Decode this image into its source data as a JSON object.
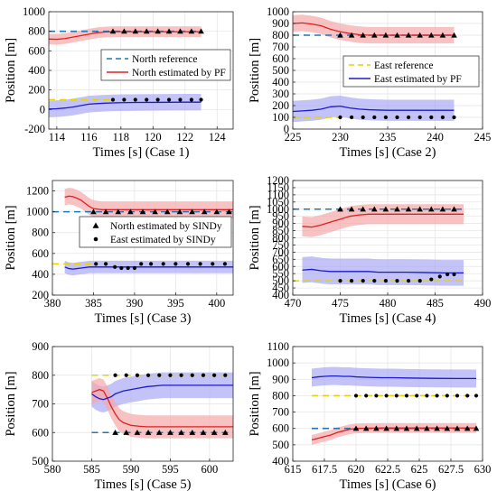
{
  "colors": {
    "north_ref": "#1f77b4",
    "east_ref": "#e5d400",
    "pf_north": "#e02020",
    "pf_east": "#1a1ad0",
    "band_north": "#f7a8a8",
    "band_east": "#a9a9f5",
    "sindy": "#000000"
  },
  "chart_data": [
    {
      "type": "line",
      "xlabel": "Times [s]  (Case 1)",
      "ylabel": "Position [m]",
      "xlim": [
        113.5,
        125
      ],
      "ylim": [
        -200,
        1000
      ],
      "xticks": [
        114,
        116,
        118,
        120,
        122,
        124
      ],
      "yticks": [
        -200,
        0,
        200,
        400,
        600,
        800,
        1000
      ],
      "legend": {
        "position": "right",
        "entries": [
          "North reference",
          "North estimated by PF"
        ]
      },
      "north_ref": {
        "y": 800,
        "x": [
          113.5,
          123
        ]
      },
      "east_ref": {
        "y": 100,
        "x": [
          113.5,
          117.5
        ]
      },
      "pf_north": {
        "x": [
          113.5,
          114,
          114.5,
          115,
          115.5,
          116,
          116.5,
          117,
          117.5,
          118,
          119,
          120,
          121,
          122,
          123
        ],
        "y": [
          720,
          718,
          725,
          740,
          755,
          770,
          785,
          792,
          795,
          796,
          795,
          796,
          795,
          796,
          795
        ],
        "band": 55
      },
      "pf_east": {
        "x": [
          113.5,
          114,
          114.5,
          115,
          115.5,
          116,
          116.5,
          117,
          117.5,
          118,
          119,
          120,
          121,
          122,
          123
        ],
        "y": [
          5,
          8,
          15,
          25,
          40,
          55,
          60,
          65,
          68,
          70,
          72,
          73,
          74,
          75,
          75
        ],
        "band": 85
      },
      "sindy_north": {
        "x": [
          117.5,
          118.2,
          118.9,
          119.6,
          120.3,
          121,
          121.7,
          122.4,
          123
        ],
        "y": [
          800,
          800,
          800,
          800,
          800,
          800,
          800,
          800,
          800
        ]
      },
      "sindy_east": {
        "x": [
          117.5,
          118.2,
          118.9,
          119.6,
          120.3,
          121,
          121.7,
          122.4,
          123
        ],
        "y": [
          100,
          100,
          100,
          100,
          100,
          100,
          100,
          100,
          100
        ]
      }
    },
    {
      "type": "line",
      "xlabel": "Times [s]  (Case 2)",
      "ylabel": "Position [m]",
      "xlim": [
        225,
        245
      ],
      "ylim": [
        0,
        1000
      ],
      "xticks": [
        225,
        230,
        235,
        240,
        245
      ],
      "yticks": [
        0,
        100,
        200,
        300,
        400,
        500,
        600,
        700,
        800,
        900,
        1000
      ],
      "legend": {
        "position": "right",
        "entries": [
          "East reference",
          "East estimated by PF"
        ]
      },
      "north_ref": {
        "y": 800,
        "x": [
          225,
          242
        ]
      },
      "east_ref": {
        "y": 100,
        "x": [
          225,
          230
        ]
      },
      "pf_north": {
        "x": [
          225,
          226,
          227,
          228,
          229,
          230,
          231,
          232,
          233,
          234,
          235,
          236,
          238,
          240,
          242
        ],
        "y": [
          900,
          905,
          895,
          880,
          850,
          830,
          815,
          805,
          800,
          800,
          800,
          800,
          800,
          800,
          800
        ],
        "band": 70
      },
      "pf_east": {
        "x": [
          225,
          226,
          227,
          228,
          229,
          230,
          231,
          232,
          233,
          234,
          235,
          236,
          238,
          240,
          242
        ],
        "y": [
          150,
          155,
          160,
          170,
          190,
          195,
          180,
          170,
          165,
          162,
          160,
          160,
          160,
          160,
          160
        ],
        "band": 90
      },
      "sindy_north": {
        "x": [
          230,
          231.2,
          232.4,
          233.6,
          234.8,
          236,
          237.2,
          238.4,
          239.6,
          240.8,
          242
        ],
        "y": [
          800,
          800,
          800,
          800,
          800,
          800,
          800,
          800,
          800,
          800,
          800
        ]
      },
      "sindy_east": {
        "x": [
          230,
          231.2,
          232.4,
          233.6,
          234.8,
          236,
          237.2,
          238.4,
          239.6,
          240.8,
          242
        ],
        "y": [
          100,
          100,
          100,
          100,
          100,
          100,
          100,
          100,
          100,
          100,
          100
        ]
      }
    },
    {
      "type": "line",
      "xlabel": "Times [s]  (Case 3)",
      "ylabel": "Position [m]",
      "xlim": [
        380,
        402
      ],
      "ylim": [
        200,
        1300
      ],
      "xticks": [
        380,
        385,
        390,
        395,
        400
      ],
      "yticks": [
        200,
        400,
        600,
        800,
        1000,
        1200
      ],
      "legend": {
        "position": "right",
        "entries": [
          "North estimated by SINDy",
          "East estimated by SINDy"
        ]
      },
      "north_ref": {
        "y": 1000,
        "x": [
          380,
          402
        ]
      },
      "east_ref": {
        "y": 500,
        "x": [
          380,
          385
        ]
      },
      "pf_north": {
        "x": [
          381.5,
          382,
          382.5,
          383,
          383.5,
          384,
          384.5,
          385,
          386,
          388,
          390,
          392,
          395,
          398,
          402
        ],
        "y": [
          1140,
          1150,
          1145,
          1130,
          1110,
          1080,
          1050,
          1030,
          1020,
          1020,
          1020,
          1020,
          1020,
          1020,
          1020
        ],
        "band": 80
      },
      "pf_east": {
        "x": [
          381.5,
          382,
          382.5,
          383,
          383.5,
          384,
          384.5,
          385,
          386,
          388,
          390,
          392,
          395,
          398,
          402
        ],
        "y": [
          470,
          455,
          450,
          455,
          460,
          465,
          470,
          470,
          470,
          470,
          470,
          470,
          470,
          470,
          470
        ],
        "band": 60
      },
      "sindy_north": {
        "x": [
          385,
          386.5,
          388,
          389.5,
          391,
          392.5,
          394,
          395.5,
          397,
          398.5,
          400,
          401.5
        ],
        "y": [
          1000,
          1000,
          1000,
          1000,
          1000,
          1000,
          1000,
          1000,
          1000,
          1000,
          1000,
          1000
        ]
      },
      "sindy_east": {
        "x": [
          385.3,
          386.5,
          387.6,
          388.4,
          389.2,
          390,
          390.8,
          392,
          393.5,
          395,
          396.5,
          398,
          399.5,
          401
        ],
        "y": [
          500,
          500,
          470,
          460,
          460,
          460,
          500,
          500,
          500,
          500,
          500,
          500,
          500,
          500
        ]
      }
    },
    {
      "type": "line",
      "xlabel": "Times [s]  (Case 4)",
      "ylabel": "Position [m]",
      "xlim": [
        470,
        490
      ],
      "ylim": [
        400,
        1200
      ],
      "xticks": [
        470,
        475,
        480,
        485,
        490
      ],
      "yticks": [
        400,
        450,
        500,
        550,
        600,
        650,
        700,
        750,
        800,
        850,
        900,
        950,
        1000,
        1050,
        1100,
        1150,
        1200
      ],
      "north_ref": {
        "y": 1000,
        "x": [
          470,
          488
        ]
      },
      "east_ref": {
        "y": 500,
        "x": [
          470,
          488
        ]
      },
      "pf_north": {
        "x": [
          471,
          472,
          473,
          474,
          475,
          476,
          477,
          478,
          479,
          480,
          482,
          484,
          486,
          488
        ],
        "y": [
          880,
          875,
          890,
          910,
          930,
          950,
          960,
          965,
          965,
          965,
          965,
          965,
          965,
          965
        ],
        "band": 70
      },
      "pf_east": {
        "x": [
          471,
          472,
          473,
          474,
          475,
          476,
          477,
          478,
          479,
          480,
          482,
          484,
          486,
          488
        ],
        "y": [
          575,
          580,
          570,
          565,
          565,
          565,
          565,
          565,
          560,
          560,
          560,
          558,
          555,
          555
        ],
        "band": 90
      },
      "sindy_north": {
        "x": [
          475,
          476.2,
          477.4,
          478.6,
          479.8,
          481,
          482.2,
          483.4,
          484.6,
          485.8,
          487
        ],
        "y": [
          1000,
          1000,
          1000,
          1000,
          1000,
          1000,
          1000,
          1000,
          1000,
          1000,
          1000
        ]
      },
      "sindy_east": {
        "x": [
          475,
          476.2,
          477.4,
          478.6,
          479.8,
          481,
          482.2,
          483.4,
          484.6,
          485.5,
          486.3,
          487
        ],
        "y": [
          500,
          500,
          500,
          500,
          500,
          500,
          500,
          500,
          510,
          530,
          545,
          545
        ]
      }
    },
    {
      "type": "line",
      "xlabel": "Times [s]  (Case 5)",
      "ylabel": "Position [m]",
      "xlim": [
        580,
        603
      ],
      "ylim": [
        500,
        900
      ],
      "xticks": [
        580,
        585,
        590,
        595,
        600
      ],
      "yticks": [
        500,
        600,
        700,
        800,
        900
      ],
      "north_ref": {
        "y": 600,
        "x": [
          585,
          603
        ]
      },
      "east_ref": {
        "y": 800,
        "x": [
          585,
          603
        ]
      },
      "pf_north": {
        "x": [
          585,
          585.5,
          586,
          586.5,
          587,
          587.5,
          588,
          588.5,
          589,
          590,
          591,
          592,
          594,
          597,
          600,
          603
        ],
        "y": [
          740,
          745,
          750,
          745,
          720,
          690,
          665,
          645,
          635,
          625,
          622,
          620,
          620,
          620,
          620,
          620
        ],
        "band": 40
      },
      "pf_east": {
        "x": [
          585,
          585.5,
          586,
          586.5,
          587,
          587.5,
          588,
          588.5,
          589,
          590,
          591,
          592,
          594,
          597,
          600,
          603
        ],
        "y": [
          735,
          725,
          718,
          715,
          720,
          725,
          735,
          740,
          745,
          750,
          755,
          760,
          765,
          765,
          765,
          765
        ],
        "band": 45
      },
      "sindy_north": {
        "x": [
          588,
          589.4,
          590.8,
          592.2,
          593.6,
          595,
          596.4,
          597.8,
          599.2,
          600.6,
          602
        ],
        "y": [
          600,
          600,
          600,
          600,
          600,
          600,
          600,
          600,
          600,
          600,
          600
        ]
      },
      "sindy_east": {
        "x": [
          588,
          589.4,
          590.8,
          592.2,
          593.6,
          595,
          596.4,
          597.8,
          599.2,
          600.6,
          602
        ],
        "y": [
          800,
          800,
          800,
          800,
          800,
          800,
          800,
          800,
          800,
          800,
          800
        ]
      }
    },
    {
      "type": "line",
      "xlabel": "Times [s]  (Case 6)",
      "ylabel": "Position [m]",
      "xlim": [
        615,
        630
      ],
      "ylim": [
        400,
        1100
      ],
      "xticks": [
        615,
        617.5,
        620,
        622.5,
        625,
        627.5,
        630
      ],
      "xtick_labels": [
        "615",
        "617.5",
        "620",
        "622.5",
        "625",
        "627.5",
        "630"
      ],
      "yticks": [
        400,
        500,
        600,
        700,
        800,
        900,
        1000,
        1100
      ],
      "north_ref": {
        "y": 600,
        "x": [
          616.5,
          629.5
        ]
      },
      "east_ref": {
        "y": 800,
        "x": [
          616.5,
          629.5
        ]
      },
      "pf_north": {
        "x": [
          616.5,
          617,
          617.5,
          618,
          618.5,
          619,
          619.5,
          620,
          621,
          622,
          623,
          624,
          626,
          628,
          629.5
        ],
        "y": [
          530,
          540,
          550,
          560,
          575,
          585,
          595,
          600,
          602,
          603,
          603,
          603,
          603,
          603,
          603
        ],
        "band": 30
      },
      "pf_east": {
        "x": [
          616.5,
          617,
          617.5,
          618,
          618.5,
          619,
          619.5,
          620,
          621,
          622,
          623,
          624,
          626,
          628,
          629.5
        ],
        "y": [
          910,
          915,
          918,
          920,
          920,
          918,
          918,
          915,
          912,
          910,
          910,
          908,
          906,
          905,
          905
        ],
        "band": 55
      },
      "sindy_north": {
        "x": [
          620,
          620.8,
          621.6,
          622.4,
          623.2,
          624,
          624.8,
          625.6,
          626.4,
          627.2,
          628,
          628.8,
          629.5
        ],
        "y": [
          600,
          600,
          600,
          600,
          600,
          600,
          600,
          600,
          600,
          600,
          600,
          600,
          600
        ]
      },
      "sindy_east": {
        "x": [
          620,
          620.8,
          621.6,
          622.4,
          623.2,
          624,
          624.8,
          625.6,
          626.4,
          627.2,
          628,
          628.8,
          629.5
        ],
        "y": [
          800,
          800,
          800,
          800,
          800,
          800,
          800,
          800,
          800,
          800,
          800,
          800,
          800
        ]
      }
    }
  ]
}
